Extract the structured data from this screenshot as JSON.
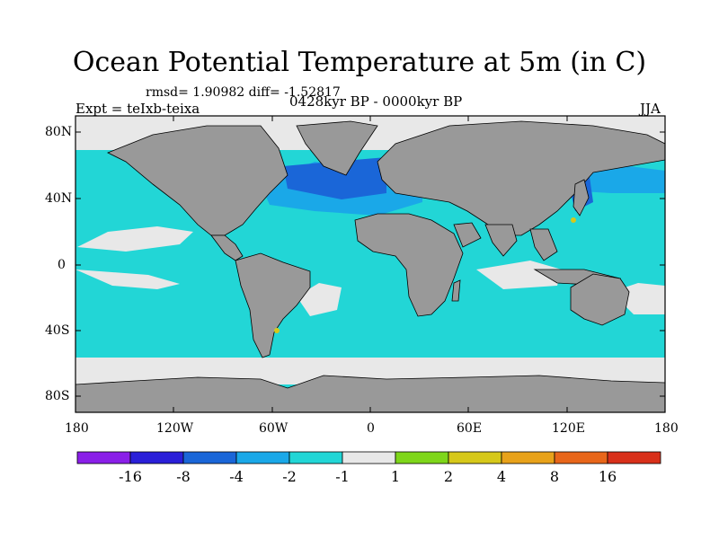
{
  "title": "Ocean Potential Temperature at 5m (in C)",
  "stats": "rmsd= 1.90982 diff= -1.52817",
  "experiment": "Expt = teIxb-teixa",
  "period": "0428kyr BP - 0000kyr BP",
  "season": "JJA",
  "lat_labels": [
    "80N",
    "40N",
    "0",
    "40S",
    "80S"
  ],
  "lon_labels": [
    "180",
    "120W",
    "60W",
    "0",
    "60E",
    "120E",
    "180"
  ],
  "colorbar": {
    "labels": [
      "-16",
      "-8",
      "-4",
      "-2",
      "-1",
      "1",
      "2",
      "4",
      "8",
      "16"
    ],
    "colors": [
      "#8a1fe8",
      "#2a1fd8",
      "#1a66d8",
      "#1aa8e8",
      "#22d6d6",
      "#e8e8e8",
      "#7ed61a",
      "#d6c81a",
      "#e8a21a",
      "#e8661a",
      "#d8301a"
    ]
  },
  "colors": {
    "land": "#999999",
    "ocean_main": "#22d6d6",
    "ocean_cool": "#1aa8e8",
    "ocean_cold": "#1a66d8",
    "near_zero": "#e8e8e8",
    "warm": "#d6c81a"
  }
}
